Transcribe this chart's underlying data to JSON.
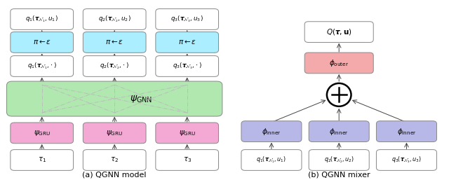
{
  "fig_width": 6.4,
  "fig_height": 2.77,
  "bg_color": "#ffffff",
  "left": {
    "title": "(a) QGNN model",
    "box_white": "#ffffff",
    "box_cyan": "#aaeeff",
    "box_green": "#b0e8b0",
    "box_pink": "#f4a8d4",
    "edge_color": "#888888",
    "arrow_color": "#444444",
    "dash_color": "#bbbbbb"
  },
  "right": {
    "title": "(b) QGNN mixer",
    "box_white": "#ffffff",
    "box_salmon": "#f4aaaa",
    "box_purple": "#b8b8e8",
    "edge_color": "#888888",
    "arrow_color": "#444444"
  }
}
